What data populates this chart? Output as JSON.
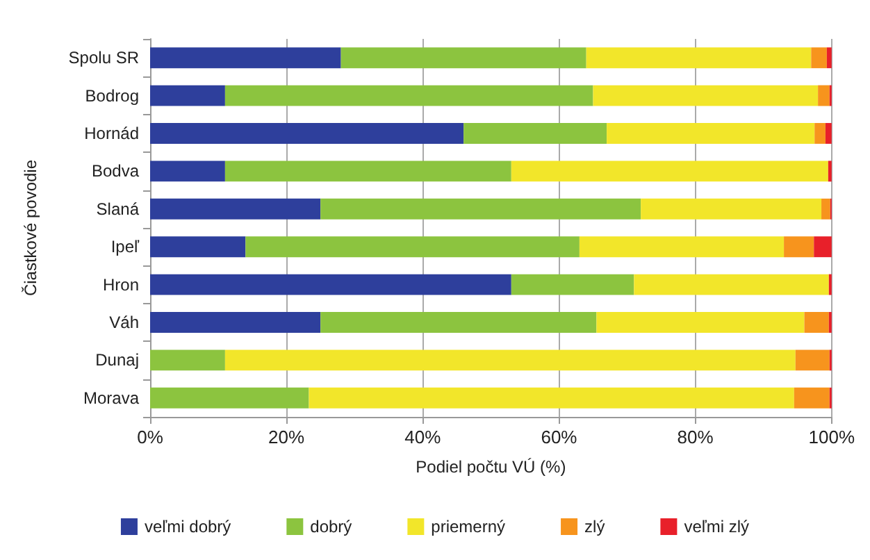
{
  "chart_data": {
    "type": "bar",
    "orientation": "horizontal",
    "stacked": true,
    "xlabel": "Podiel počtu VÚ (%)",
    "ylabel": "Čiastkové povodie",
    "categories": [
      "Spolu SR",
      "Bodrog",
      "Hornád",
      "Bodva",
      "Slaná",
      "Ipeľ",
      "Hron",
      "Váh",
      "Dunaj",
      "Morava"
    ],
    "series": [
      {
        "name": "veľmi dobrý",
        "color": "#2e3f9c",
        "values": [
          28,
          11,
          46,
          11,
          25,
          14,
          53,
          25,
          0,
          0
        ]
      },
      {
        "name": "dobrý",
        "color": "#8cc43f",
        "values": [
          36,
          54,
          21,
          42,
          47,
          49,
          18,
          40.5,
          11,
          23.3
        ]
      },
      {
        "name": "priemerný",
        "color": "#f2e62a",
        "values": [
          33,
          33,
          30.5,
          46.5,
          26.5,
          30,
          28.6,
          30.5,
          83.7,
          71.2
        ]
      },
      {
        "name": "zlý",
        "color": "#f7941d",
        "values": [
          2.3,
          1.7,
          1.6,
          0,
          1.3,
          4.4,
          0,
          3.6,
          5,
          5.2
        ]
      },
      {
        "name": "veľmi zlý",
        "color": "#e8202a",
        "values": [
          0.7,
          0.3,
          0.9,
          0.5,
          0.2,
          2.6,
          0.4,
          0.4,
          0.3,
          0.3
        ]
      }
    ],
    "xlim": [
      0,
      100
    ],
    "xticks": [
      {
        "value": 0,
        "label": "0%"
      },
      {
        "value": 20,
        "label": "20%"
      },
      {
        "value": 40,
        "label": "40%"
      },
      {
        "value": 60,
        "label": "60%"
      },
      {
        "value": 80,
        "label": "80%"
      },
      {
        "value": 100,
        "label": "100%"
      }
    ],
    "grid": "x",
    "legend": "bottom"
  }
}
